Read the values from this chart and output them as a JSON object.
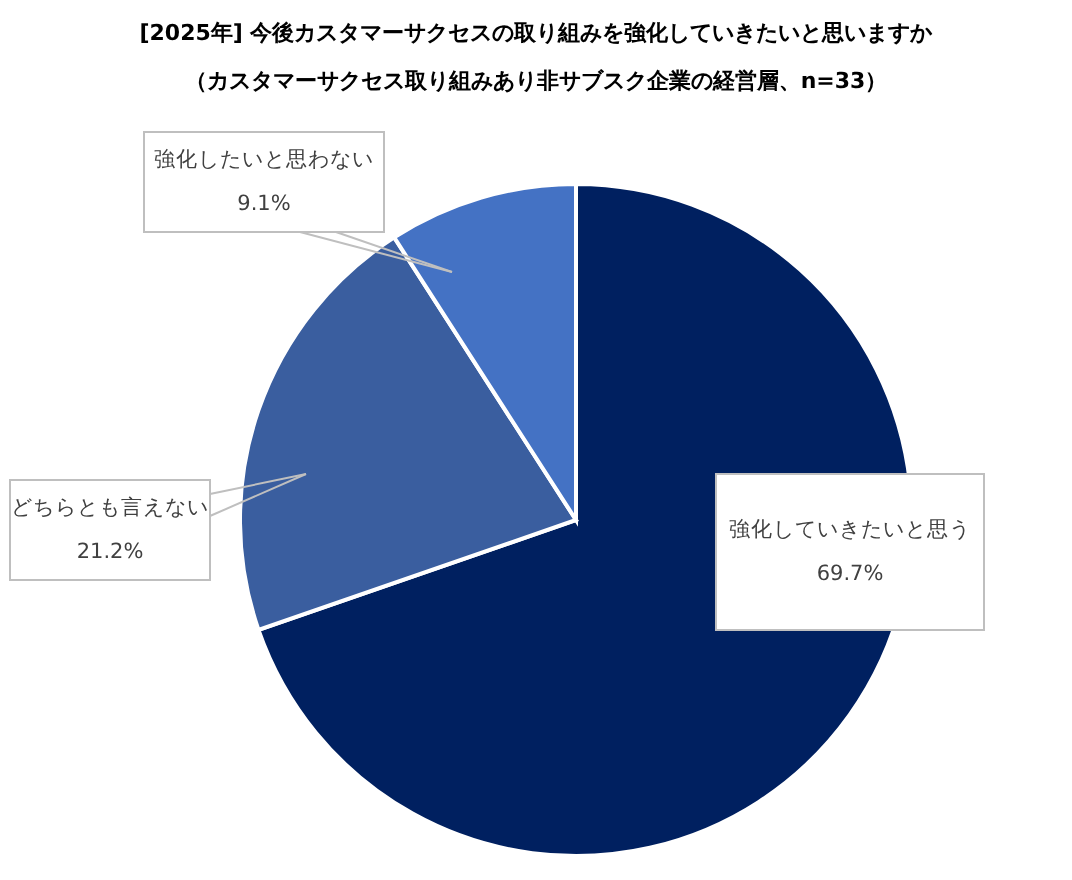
{
  "chart_data": {
    "type": "pie",
    "title": "[2025年] 今後カスタマーサクセスの取り組みを強化していきたいと思いますか",
    "subtitle": "（カスタマーサクセス取り組みあり非サブスク企業の経営層、n=33）",
    "categories": [
      "強化していきたいと思う",
      "どちらとも言えない",
      "強化したいと思わない"
    ],
    "values": [
      69.7,
      21.2,
      9.1
    ],
    "colors": [
      "#002060",
      "#3a5e9f",
      "#4472c4"
    ],
    "value_labels": [
      "69.7%",
      "21.2%",
      "9.1%"
    ]
  }
}
